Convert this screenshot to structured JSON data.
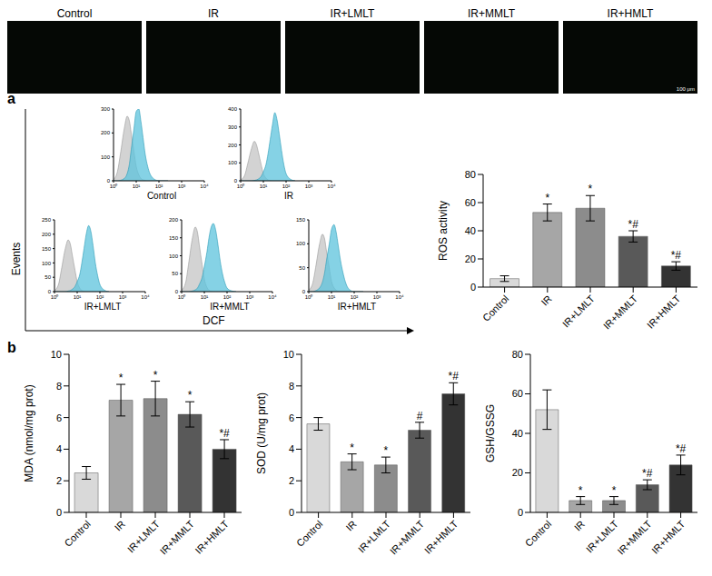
{
  "panels": [
    "a",
    "b"
  ],
  "images": {
    "labels": [
      "Control",
      "IR",
      "IR+LMLT",
      "IR+MMLT",
      "IR+HMLT"
    ],
    "scale_bar": "100 μm"
  },
  "flow": {
    "x_label": "DCF",
    "y_label": "Events"
  },
  "chart_data": [
    {
      "type": "area",
      "title": "Control",
      "log": "x",
      "x": [
        1,
        1.5,
        2,
        3,
        4,
        5,
        6,
        8,
        10,
        13,
        16,
        20,
        25,
        32,
        40,
        50,
        63,
        80,
        100,
        160,
        250
      ],
      "xlim": [
        1,
        10000
      ],
      "xticks": [
        {
          "value": 1,
          "label": "10⁰"
        },
        {
          "value": 10,
          "label": "10¹"
        },
        {
          "value": 100,
          "label": "10²"
        },
        {
          "value": 1000,
          "label": "10³"
        },
        {
          "value": 10000,
          "label": "10⁴"
        }
      ],
      "ylim": [
        0,
        300
      ],
      "yticks": [
        0,
        100,
        200,
        300
      ],
      "series": [
        {
          "color": "#c4c4c4",
          "values": [
            5,
            40,
            110,
            220,
            270,
            250,
            200,
            120,
            60,
            25,
            10,
            4,
            2,
            0,
            0,
            0,
            0,
            0,
            0,
            0,
            0
          ]
        },
        {
          "color": "#5cc3dc",
          "values": [
            0,
            0,
            2,
            10,
            30,
            70,
            130,
            220,
            290,
            300,
            250,
            180,
            110,
            60,
            30,
            15,
            6,
            2,
            0,
            0,
            0
          ]
        }
      ]
    },
    {
      "type": "area",
      "title": "IR",
      "log": "x",
      "x": [
        1,
        1.5,
        2,
        3,
        4,
        5,
        6,
        8,
        10,
        13,
        16,
        20,
        25,
        32,
        40,
        50,
        63,
        80,
        100,
        160,
        250
      ],
      "xlim": [
        1,
        10000
      ],
      "xticks": [
        {
          "value": 1,
          "label": "10⁰"
        },
        {
          "value": 10,
          "label": "10¹"
        },
        {
          "value": 100,
          "label": "10²"
        },
        {
          "value": 1000,
          "label": "10³"
        },
        {
          "value": 10000,
          "label": "10⁴"
        }
      ],
      "ylim": [
        0,
        400
      ],
      "yticks": [
        0,
        100,
        200,
        300,
        400
      ],
      "series": [
        {
          "color": "#c4c4c4",
          "values": [
            5,
            30,
            90,
            180,
            220,
            200,
            160,
            90,
            40,
            15,
            5,
            2,
            0,
            0,
            0,
            0,
            0,
            0,
            0,
            0,
            0
          ]
        },
        {
          "color": "#5cc3dc",
          "values": [
            0,
            0,
            0,
            0,
            2,
            5,
            10,
            25,
            50,
            90,
            150,
            230,
            310,
            380,
            340,
            260,
            170,
            90,
            40,
            8,
            0
          ]
        }
      ]
    },
    {
      "type": "area",
      "title": "IR+LMLT",
      "log": "x",
      "x": [
        1,
        1.5,
        2,
        3,
        4,
        5,
        6,
        8,
        10,
        13,
        16,
        20,
        25,
        32,
        40,
        50,
        63,
        80,
        100,
        160,
        250
      ],
      "xlim": [
        1,
        10000
      ],
      "xticks": [
        {
          "value": 1,
          "label": "10⁰"
        },
        {
          "value": 10,
          "label": "10¹"
        },
        {
          "value": 100,
          "label": "10²"
        },
        {
          "value": 1000,
          "label": "10³"
        },
        {
          "value": 10000,
          "label": "10⁴"
        }
      ],
      "ylim": [
        0,
        250
      ],
      "yticks": [
        0,
        50,
        100,
        150,
        200,
        250
      ],
      "series": [
        {
          "color": "#c4c4c4",
          "values": [
            4,
            25,
            75,
            150,
            180,
            165,
            130,
            75,
            35,
            12,
            4,
            1,
            0,
            0,
            0,
            0,
            0,
            0,
            0,
            0,
            0
          ]
        },
        {
          "color": "#5cc3dc",
          "values": [
            0,
            0,
            0,
            0,
            2,
            4,
            8,
            18,
            35,
            60,
            100,
            150,
            200,
            230,
            210,
            160,
            100,
            55,
            25,
            5,
            0
          ]
        }
      ]
    },
    {
      "type": "area",
      "title": "IR+MMLT",
      "log": "x",
      "x": [
        1,
        1.5,
        2,
        3,
        4,
        5,
        6,
        8,
        10,
        13,
        16,
        20,
        25,
        32,
        40,
        50,
        63,
        80,
        100,
        160,
        250
      ],
      "xlim": [
        1,
        10000
      ],
      "xticks": [
        {
          "value": 1,
          "label": "10⁰"
        },
        {
          "value": 10,
          "label": "10¹"
        },
        {
          "value": 100,
          "label": "10²"
        },
        {
          "value": 1000,
          "label": "10³"
        },
        {
          "value": 10000,
          "label": "10⁴"
        }
      ],
      "ylim": [
        0,
        200
      ],
      "yticks": [
        0,
        50,
        100,
        150,
        200
      ],
      "series": [
        {
          "color": "#c4c4c4",
          "values": [
            4,
            25,
            75,
            150,
            180,
            165,
            130,
            75,
            35,
            12,
            4,
            1,
            0,
            0,
            0,
            0,
            0,
            0,
            0,
            0,
            0
          ]
        },
        {
          "color": "#5cc3dc",
          "values": [
            0,
            0,
            0,
            2,
            5,
            10,
            20,
            40,
            70,
            110,
            150,
            180,
            190,
            170,
            130,
            85,
            50,
            25,
            10,
            2,
            0
          ]
        }
      ]
    },
    {
      "type": "area",
      "title": "IR+HMLT",
      "log": "x",
      "x": [
        1,
        1.5,
        2,
        3,
        4,
        5,
        6,
        8,
        10,
        13,
        16,
        20,
        25,
        32,
        40,
        50,
        63,
        80,
        100,
        160,
        250
      ],
      "xlim": [
        1,
        10000
      ],
      "xticks": [
        {
          "value": 1,
          "label": "10⁰"
        },
        {
          "value": 10,
          "label": "10¹"
        },
        {
          "value": 100,
          "label": "10²"
        },
        {
          "value": 1000,
          "label": "10³"
        },
        {
          "value": 10000,
          "label": "10⁴"
        }
      ],
      "ylim": [
        0,
        150
      ],
      "yticks": [
        0,
        50,
        100,
        150
      ],
      "series": [
        {
          "color": "#c4c4c4",
          "values": [
            3,
            18,
            50,
            100,
            120,
            110,
            85,
            50,
            22,
            8,
            3,
            1,
            0,
            0,
            0,
            0,
            0,
            0,
            0,
            0,
            0
          ]
        },
        {
          "color": "#5cc3dc",
          "values": [
            0,
            0,
            2,
            8,
            20,
            40,
            65,
            100,
            130,
            140,
            125,
            95,
            65,
            40,
            22,
            10,
            4,
            1,
            0,
            0,
            0
          ]
        }
      ]
    },
    {
      "type": "bar",
      "y_label": "ROS activity",
      "categories": [
        "Control",
        "IR",
        "IR+LMLT",
        "IR+MMLT",
        "IR+HMLT"
      ],
      "values": [
        6,
        53,
        56,
        36,
        15
      ],
      "errors": [
        2,
        6,
        9,
        4,
        3
      ],
      "annotations": [
        null,
        "*",
        "*",
        "*#",
        "*#"
      ],
      "colors": [
        "#d9d9d9",
        "#a6a6a6",
        "#8c8c8c",
        "#595959",
        "#333333"
      ],
      "ylim": [
        0,
        80
      ],
      "yticks": [
        0,
        20,
        40,
        60,
        80
      ]
    },
    {
      "type": "bar",
      "y_label": "MDA (nmol/mg prot)",
      "categories": [
        "Control",
        "IR",
        "IR+LMLT",
        "IR+MMLT",
        "IR+HMLT"
      ],
      "values": [
        2.5,
        7.1,
        7.2,
        6.2,
        4.0
      ],
      "errors": [
        0.4,
        1.0,
        1.1,
        0.8,
        0.6
      ],
      "annotations": [
        null,
        "*",
        "*",
        "*",
        "*#"
      ],
      "colors": [
        "#d9d9d9",
        "#a6a6a6",
        "#8c8c8c",
        "#595959",
        "#333333"
      ],
      "ylim": [
        0,
        10
      ],
      "yticks": [
        0,
        2,
        4,
        6,
        8,
        10
      ]
    },
    {
      "type": "bar",
      "y_label": "SOD (U/mg prot)",
      "categories": [
        "Control",
        "IR",
        "IR+LMLT",
        "IR+MMLT",
        "IR+HMLT"
      ],
      "values": [
        5.6,
        3.2,
        3.0,
        5.2,
        7.5
      ],
      "errors": [
        0.4,
        0.5,
        0.5,
        0.5,
        0.7
      ],
      "annotations": [
        null,
        "*",
        "*",
        "#",
        "*#"
      ],
      "colors": [
        "#d9d9d9",
        "#a6a6a6",
        "#8c8c8c",
        "#595959",
        "#333333"
      ],
      "ylim": [
        0,
        10
      ],
      "yticks": [
        0,
        2,
        4,
        6,
        8,
        10
      ]
    },
    {
      "type": "bar",
      "y_label": "GSH/GSSG",
      "categories": [
        "Control",
        "IR",
        "IR+LMLT",
        "IR+MMLT",
        "IR+HMLT"
      ],
      "values": [
        52,
        6,
        6,
        14,
        24
      ],
      "errors": [
        10,
        2,
        2,
        2.5,
        5
      ],
      "annotations": [
        null,
        "*",
        "*",
        "*#",
        "*#"
      ],
      "colors": [
        "#d9d9d9",
        "#a6a6a6",
        "#8c8c8c",
        "#595959",
        "#333333"
      ],
      "ylim": [
        0,
        80
      ],
      "yticks": [
        0,
        20,
        40,
        60,
        80
      ]
    }
  ]
}
